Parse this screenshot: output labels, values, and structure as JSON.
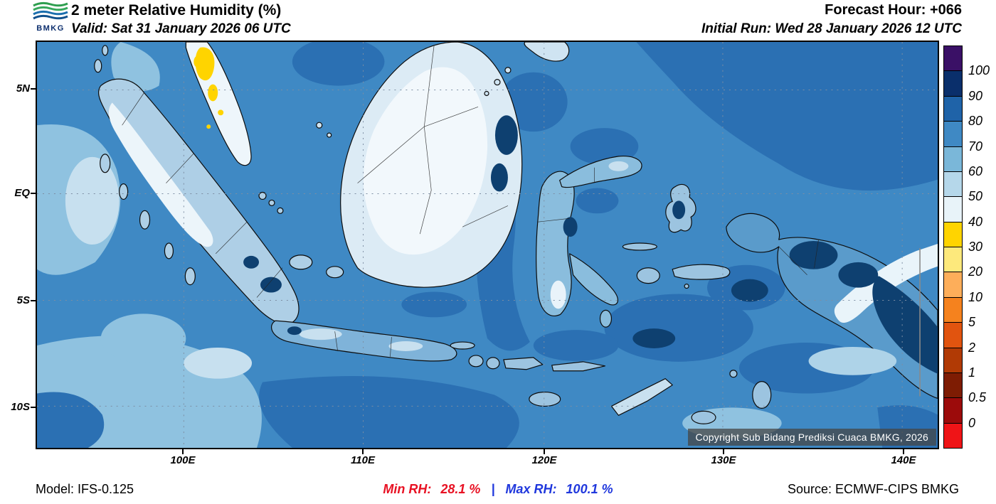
{
  "header": {
    "logo_text": "BMKG",
    "title": "2 meter Relative Humidity (%)",
    "valid_line": "Valid: Sat 31 January 2026 06 UTC",
    "forecast_hour_line": "Forecast Hour: +066",
    "initial_run_line": "Initial Run: Wed 28 January 2026 12 UTC"
  },
  "map": {
    "lat_labels": [
      "5N",
      "EQ",
      "5S",
      "10S"
    ],
    "lon_labels": [
      "100E",
      "110E",
      "120E",
      "130E",
      "140E"
    ],
    "copyright": "Copyright Sub Bidang Prediksi Cuaca BMKG, 2026"
  },
  "colorbar": {
    "labels": [
      "100",
      "90",
      "80",
      "70",
      "60",
      "50",
      "40",
      "30",
      "20",
      "10",
      "5",
      "2",
      "1",
      "0.5",
      "0"
    ],
    "colors_top_to_bottom": [
      "#3a1066",
      "#0a2f6b",
      "#1f63a8",
      "#3f89c4",
      "#7ab7d9",
      "#b5d7ea",
      "#e8f3f9",
      "#ffd400",
      "#fde97c",
      "#fdae5a",
      "#f5821e",
      "#e1540f",
      "#b13a05",
      "#7e1c03",
      "#9c0b0b",
      "#ef1417"
    ]
  },
  "footer": {
    "model": "Model: IFS-0.125",
    "min_label": "Min RH:",
    "min_value": "28.1 %",
    "separator": "|",
    "max_label": "Max RH:",
    "max_value": "100.1 %",
    "source": "Source: ECMWF-CIPS BMKG"
  },
  "chart_data": {
    "type": "heatmap",
    "title": "2 meter Relative Humidity (%)",
    "region_shown": "Indonesia and surrounding seas",
    "x_tick_labels": [
      "100E",
      "110E",
      "120E",
      "130E",
      "140E"
    ],
    "y_tick_labels": [
      "5N",
      "EQ",
      "5S",
      "10S"
    ],
    "units": "%",
    "colorbar_levels": [
      0,
      0.5,
      1,
      2,
      5,
      10,
      20,
      30,
      40,
      50,
      60,
      70,
      80,
      90,
      100
    ],
    "colorbar_colors_top_to_bottom": [
      "#3a1066",
      "#0a2f6b",
      "#1f63a8",
      "#3f89c4",
      "#7ab7d9",
      "#b5d7ea",
      "#e8f3f9",
      "#ffd400",
      "#fde97c",
      "#fdae5a",
      "#f5821e",
      "#e1540f",
      "#b13a05",
      "#7e1c03",
      "#9c0b0b",
      "#ef1417"
    ],
    "min_rh_percent": 28.1,
    "max_rh_percent": 100.1,
    "forecast_hour": "+066",
    "valid_time": "Sat 31 January 2026 06 UTC",
    "initial_run": "Wed 28 January 2026 12 UTC",
    "model": "IFS-0.125",
    "source": "ECMWF-CIPS BMKG",
    "grid": "dashed graticule every 5 deg lat / 10 deg lon",
    "legend_position": "right",
    "notable_features": "Mostly 70-90% RH over seas; 40-60% (pale) over interior Borneo, Malay Peninsula, NW Sumatra; 30-40% (yellow) spots near northern Sumatra/Malay Peninsula; >90% (navy) pockets over Papua highlands and NE Borneo coast"
  }
}
